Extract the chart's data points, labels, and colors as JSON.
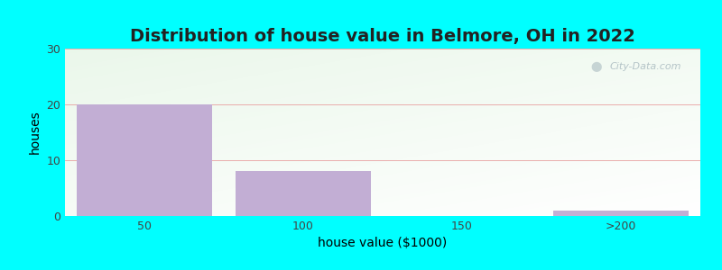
{
  "title": "Distribution of house value in Belmore, OH in 2022",
  "xlabel": "house value ($1000)",
  "ylabel": "houses",
  "categories": [
    "50",
    "100",
    "150",
    ">200"
  ],
  "values": [
    20,
    8,
    0,
    1
  ],
  "bar_color": "#C2AED4",
  "ylim": [
    0,
    30
  ],
  "yticks": [
    0,
    10,
    20,
    30
  ],
  "background_color": "#00FFFF",
  "grid_color": "#ddaaaa",
  "title_fontsize": 14,
  "axis_label_fontsize": 10,
  "tick_fontsize": 9,
  "bar_width": 0.85,
  "watermark": "City-Data.com"
}
